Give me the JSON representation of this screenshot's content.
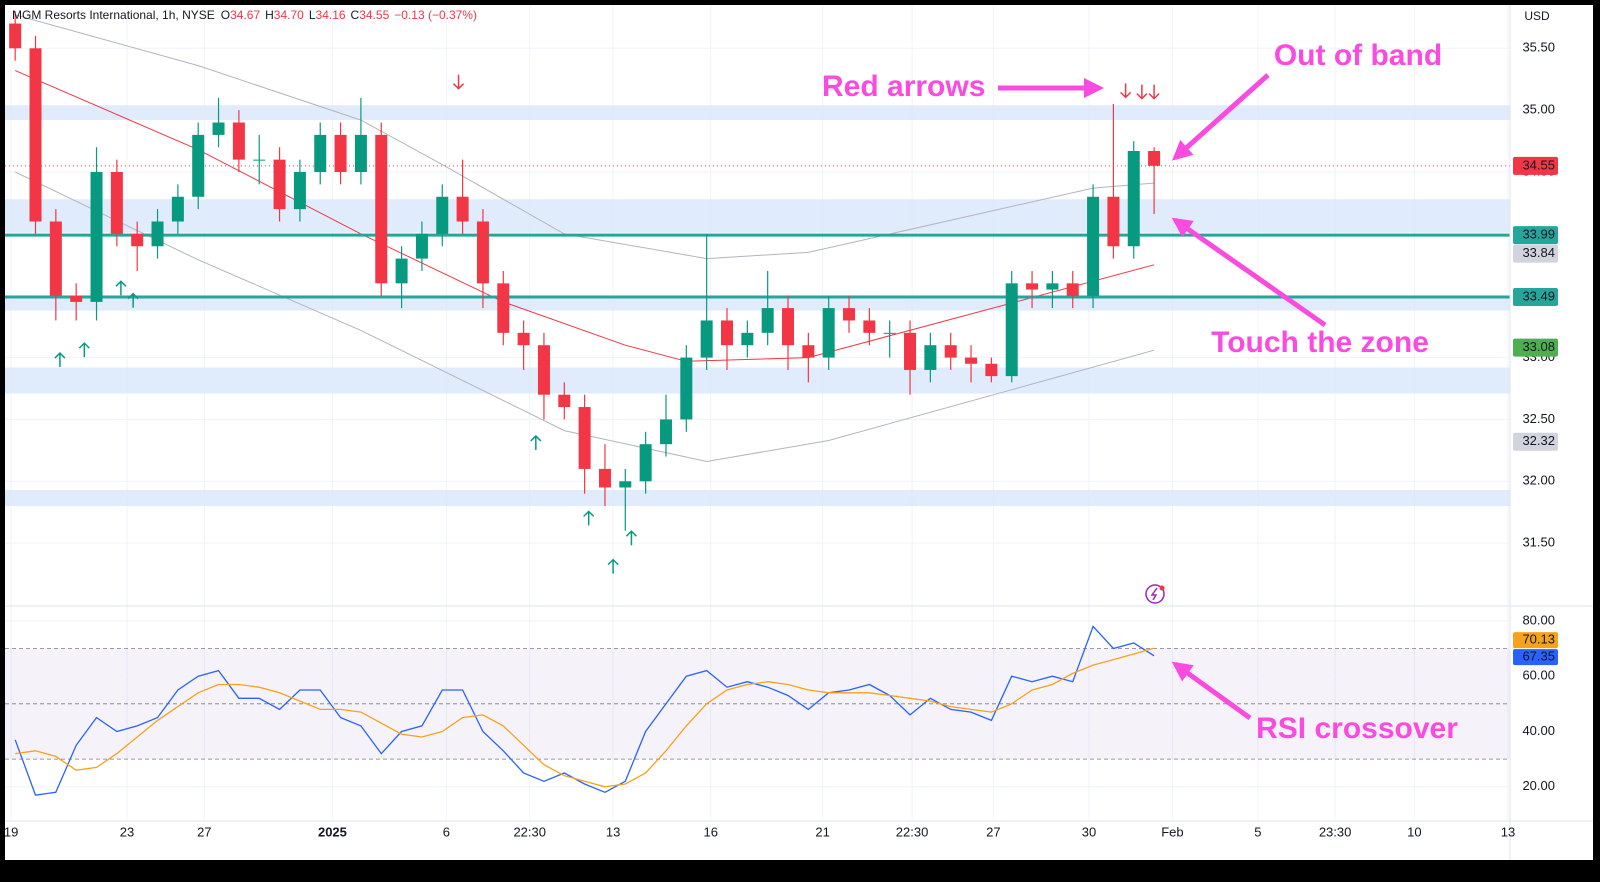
{
  "chart_data": [
    {
      "type": "candlestick",
      "title": "MGM Resorts International, 1h, NYSE",
      "ohlc_letters": [
        "O",
        "H",
        "L",
        "C"
      ],
      "ohlc_values": [
        "34.67",
        "34.70",
        "34.16",
        "34.55"
      ],
      "change": "−0.13 (−0.37%)",
      "currency": "USD",
      "up_color": "#089981",
      "down_color": "#f23645",
      "open": [
        35.7,
        35.5,
        34.1,
        33.5,
        33.45,
        34.5,
        34.0,
        33.9,
        34.1,
        34.3,
        34.8,
        34.9,
        34.6,
        34.6,
        34.2,
        34.5,
        34.8,
        34.5,
        34.8,
        33.6,
        33.8,
        34.0,
        34.3,
        34.1,
        33.6,
        33.2,
        33.1,
        32.7,
        32.6,
        32.1,
        31.95,
        32.0,
        32.3,
        32.5,
        33.0,
        33.3,
        33.1,
        33.2,
        33.4,
        33.1,
        33.0,
        33.4,
        33.3,
        33.2,
        33.2,
        32.9,
        33.1,
        33.0,
        32.95,
        32.85,
        33.6,
        33.55,
        33.6,
        33.5,
        34.3,
        33.9,
        34.67
      ],
      "high": [
        35.8,
        35.6,
        34.2,
        33.6,
        34.7,
        34.6,
        34.1,
        34.2,
        34.4,
        34.9,
        35.1,
        35.0,
        34.8,
        34.7,
        34.6,
        34.9,
        34.9,
        35.1,
        34.9,
        33.9,
        34.1,
        34.4,
        34.6,
        34.2,
        33.7,
        33.3,
        33.2,
        32.8,
        32.7,
        32.3,
        32.1,
        32.4,
        32.7,
        33.1,
        34.0,
        33.4,
        33.3,
        33.7,
        33.5,
        33.2,
        33.5,
        33.5,
        33.4,
        33.3,
        33.3,
        33.2,
        33.2,
        33.1,
        33.0,
        33.7,
        33.7,
        33.7,
        33.7,
        34.4,
        35.05,
        34.75,
        34.7
      ],
      "low": [
        35.4,
        34.0,
        33.3,
        33.3,
        33.3,
        33.9,
        33.7,
        33.8,
        34.0,
        34.2,
        34.7,
        34.5,
        34.4,
        34.1,
        34.1,
        34.4,
        34.4,
        34.4,
        33.5,
        33.4,
        33.7,
        33.9,
        34.0,
        33.4,
        33.1,
        32.9,
        32.5,
        32.5,
        31.9,
        31.8,
        31.6,
        31.9,
        32.2,
        32.4,
        32.9,
        32.9,
        33.0,
        33.1,
        32.9,
        32.8,
        32.9,
        33.2,
        33.1,
        33.0,
        32.7,
        32.8,
        32.9,
        32.8,
        32.8,
        32.8,
        33.4,
        33.4,
        33.4,
        33.4,
        33.8,
        33.8,
        34.16
      ],
      "close": [
        35.5,
        34.1,
        33.5,
        33.45,
        34.5,
        34.0,
        33.9,
        34.1,
        34.3,
        34.8,
        34.9,
        34.6,
        34.6,
        34.2,
        34.5,
        34.8,
        34.5,
        34.8,
        33.6,
        33.8,
        34.0,
        34.3,
        34.1,
        33.6,
        33.2,
        33.1,
        32.7,
        32.6,
        32.1,
        31.95,
        32.0,
        32.3,
        32.5,
        33.0,
        33.3,
        33.1,
        33.2,
        33.4,
        33.1,
        33.0,
        33.4,
        33.3,
        33.2,
        33.2,
        32.9,
        33.1,
        33.0,
        32.95,
        32.85,
        33.6,
        33.55,
        33.6,
        33.5,
        34.3,
        33.9,
        34.67,
        34.55
      ],
      "bands": [
        {
          "color": "#f23645",
          "x": [
            0,
            9,
            17,
            24,
            30,
            33,
            39,
            56
          ],
          "values": [
            35.32,
            34.68,
            34.0,
            33.45,
            33.1,
            32.97,
            33.0,
            33.75
          ]
        },
        {
          "color": "#b2b5be",
          "x": [
            0,
            9,
            17,
            21,
            27,
            34,
            39,
            53,
            56
          ],
          "values": [
            35.77,
            35.36,
            34.92,
            34.56,
            34.0,
            33.8,
            33.85,
            34.37,
            34.41
          ]
        },
        {
          "color": "#b2b5be",
          "x": [
            0,
            9,
            17,
            27,
            34,
            40,
            56
          ],
          "values": [
            34.5,
            33.79,
            33.22,
            32.41,
            32.16,
            32.33,
            33.06
          ]
        }
      ],
      "zones": [
        [
          34.92,
          35.04
        ],
        [
          34.01,
          34.28
        ],
        [
          33.38,
          33.49
        ],
        [
          32.71,
          32.92
        ],
        [
          31.8,
          31.93
        ]
      ],
      "zone_color": "#dbe7fb",
      "levels": [
        33.99,
        33.49
      ],
      "level_color": "#26a69a",
      "buy_signals": {
        "color": "#089981",
        "x": [
          2.2,
          3.4,
          5.2,
          5.8,
          25.6,
          28.2,
          29.4,
          30.3
        ],
        "y": [
          32.98,
          33.06,
          33.56,
          33.46,
          32.31,
          31.7,
          31.31,
          31.54
        ]
      },
      "sell_signals": {
        "color": "#f23645",
        "x": [
          21.8,
          54.6,
          55.4,
          56.0
        ],
        "y": [
          35.23,
          35.16,
          35.15,
          35.15
        ]
      },
      "price_labels": [
        {
          "value": 34.55,
          "color": "#f23645",
          "text_color": "#ffffff"
        },
        {
          "value": 33.99,
          "color": "#26a69a",
          "text_color": "#ffffff"
        },
        {
          "value": 33.84,
          "color": "#d1d4dc",
          "text_color": "#131722"
        },
        {
          "value": 33.49,
          "color": "#26a69a",
          "text_color": "#ffffff"
        },
        {
          "value": 33.08,
          "color": "#4caf50",
          "text_color": "#ffffff"
        },
        {
          "value": 32.32,
          "color": "#d1d4dc",
          "text_color": "#131722"
        }
      ],
      "xlim": [
        -0.5,
        73.5
      ],
      "xticks": [
        {
          "value": -0.2,
          "label": "19"
        },
        {
          "value": 5.5,
          "label": "23"
        },
        {
          "value": 9.3,
          "label": "27"
        },
        {
          "value": 15.6,
          "label": "2025"
        },
        {
          "value": 21.2,
          "label": "6"
        },
        {
          "value": 25.3,
          "label": "22:30"
        },
        {
          "value": 29.4,
          "label": "13"
        },
        {
          "value": 34.2,
          "label": "16"
        },
        {
          "value": 39.7,
          "label": "21"
        },
        {
          "value": 44.1,
          "label": "22:30"
        },
        {
          "value": 48.1,
          "label": "27"
        },
        {
          "value": 52.8,
          "label": "30"
        },
        {
          "value": 56.9,
          "label": "Feb"
        },
        {
          "value": 61.1,
          "label": "5"
        },
        {
          "value": 64.9,
          "label": "23:30"
        },
        {
          "value": 68.8,
          "label": "10"
        },
        {
          "value": 73.4,
          "label": "13"
        }
      ],
      "ylim": [
        31.0,
        35.85
      ],
      "yticks": [
        {
          "value": 31.5,
          "label": "31.50"
        },
        {
          "value": 32.0,
          "label": "32.00"
        },
        {
          "value": 32.5,
          "label": "32.50"
        },
        {
          "value": 33.0,
          "label": "33.00"
        },
        {
          "value": 33.5,
          "label": "33.50"
        },
        {
          "value": 34.0,
          "label": "34.00"
        },
        {
          "value": 34.5,
          "label": "34.50"
        },
        {
          "value": 35.0,
          "label": "35.00"
        },
        {
          "value": 35.5,
          "label": "35.50"
        }
      ],
      "grid": true,
      "annotations": [
        "Red arrows",
        "Out of band",
        "Touch the zone",
        "RSI crossover"
      ]
    },
    {
      "type": "line",
      "series": [
        {
          "color": "#2962ff",
          "values": [
            37,
            17,
            18,
            35,
            45,
            40,
            42,
            45,
            55,
            60,
            62,
            52,
            52,
            48,
            55,
            55,
            45,
            42,
            32,
            40,
            42,
            55,
            55,
            40,
            33,
            25,
            22,
            25,
            21,
            18,
            22,
            40,
            50,
            60,
            62,
            56,
            58,
            56,
            53,
            48,
            54,
            55,
            57,
            53,
            46,
            52,
            48,
            47,
            44,
            60,
            58,
            60,
            58,
            78,
            70,
            72,
            67.35
          ]
        },
        {
          "color": "#f7a21b",
          "values": [
            32,
            33,
            31,
            26,
            27,
            32,
            38,
            44,
            49,
            54,
            57,
            57,
            56,
            54,
            51,
            48,
            48,
            47,
            43,
            39,
            38,
            40,
            45,
            46,
            42,
            35,
            28,
            24,
            22,
            20,
            21,
            25,
            33,
            42,
            50,
            55,
            57,
            58,
            57,
            55,
            54,
            54,
            54,
            53,
            52,
            51,
            49,
            48,
            47,
            50,
            55,
            57,
            61,
            64,
            66,
            68,
            70.13
          ]
        }
      ],
      "value_labels": [
        {
          "value": 70.13,
          "color": "#f7a21b"
        },
        {
          "value": 67.35,
          "color": "#2962ff"
        }
      ],
      "band": [
        30,
        70
      ],
      "band_color": "#7e57c2",
      "levels": [
        30,
        50,
        70
      ],
      "ylim": [
        8,
        85
      ],
      "yticks": [
        {
          "value": 20,
          "label": "20.00"
        },
        {
          "value": 40,
          "label": "40.00"
        },
        {
          "value": 60,
          "label": "60.00"
        },
        {
          "value": 80,
          "label": "80.00"
        }
      ],
      "grid": true
    }
  ]
}
